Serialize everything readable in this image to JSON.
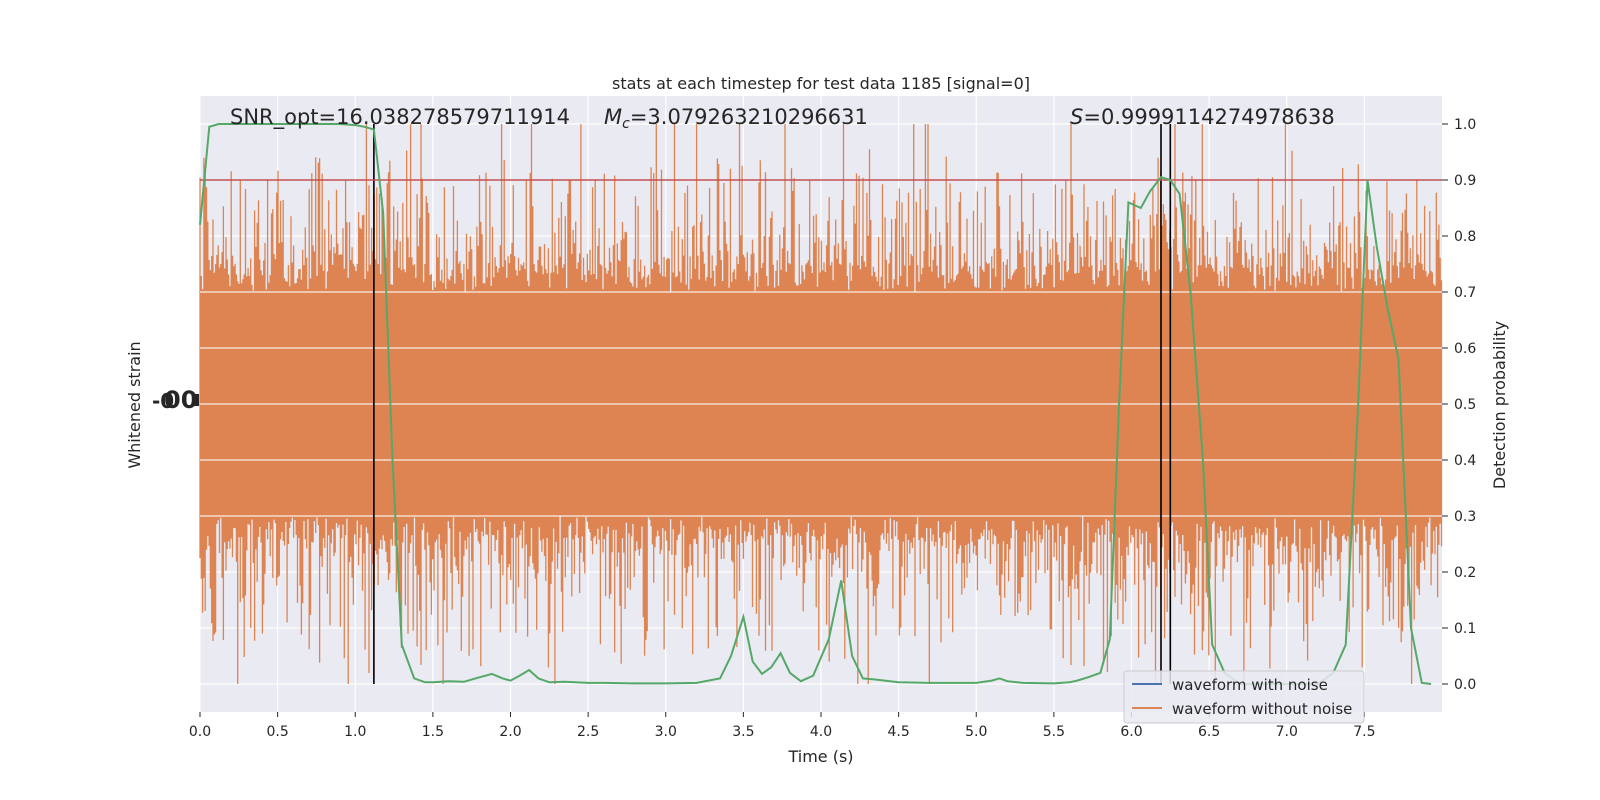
{
  "chart_data": {
    "type": "line",
    "title": "stats at each timestep for test data 1185 [signal=0]",
    "xlabel": "Time (s)",
    "ylabel_left": "Whitened strain",
    "ylabel_right": "Detection probability",
    "xlim": [
      0,
      8
    ],
    "ylim_right": [
      -0.05,
      1.05
    ],
    "grid": true,
    "x_ticks": [
      0.0,
      0.5,
      1.0,
      1.5,
      2.0,
      2.5,
      3.0,
      3.5,
      4.0,
      4.5,
      5.0,
      5.5,
      6.0,
      6.5,
      7.0,
      7.5
    ],
    "x_tick_labels": [
      "0.0",
      "0.5",
      "1.0",
      "1.5",
      "2.0",
      "2.5",
      "3.0",
      "3.5",
      "4.0",
      "4.5",
      "5.0",
      "5.5",
      "6.0",
      "6.5",
      "7.0",
      "7.5"
    ],
    "y_right_ticks": [
      0.0,
      0.1,
      0.2,
      0.3,
      0.4,
      0.5,
      0.6,
      0.7,
      0.8,
      0.9,
      1.0
    ],
    "y_right_tick_labels": [
      "0.0",
      "0.1",
      "0.2",
      "0.3",
      "0.4",
      "0.5",
      "0.6",
      "0.7",
      "0.8",
      "0.9",
      "1.0"
    ],
    "annotations": {
      "snr": "SNR_opt=16.038278579711914",
      "mc_symbol": "M",
      "mc_subscript": "c",
      "mc_value": "=3.079263210296631",
      "s_symbol": "S",
      "s_value": "=0.9999114274978638"
    },
    "legend": {
      "placement": "lower-right",
      "entries": [
        {
          "label": "waveform with noise",
          "color": "#4c72b0"
        },
        {
          "label": "waveform without noise",
          "color": "#dd8452"
        }
      ]
    },
    "threshold": {
      "y": 0.9,
      "color": "#c44e52"
    },
    "vertical_markers": [
      1.12,
      6.19,
      6.25
    ],
    "noise_band": {
      "typical_low": 0.3,
      "typical_high": 0.7,
      "peak_high": 1.0,
      "peak_low": 0.0,
      "color": "#dd8452"
    },
    "series": [
      {
        "name": "Detection probability",
        "color": "#55a868",
        "x": [
          0.0,
          0.06,
          0.12,
          0.2,
          0.3,
          0.4,
          0.5,
          0.6,
          0.7,
          0.8,
          0.9,
          1.0,
          1.06,
          1.12,
          1.18,
          1.24,
          1.3,
          1.38,
          1.45,
          1.5,
          1.6,
          1.7,
          1.8,
          1.88,
          1.95,
          2.0,
          2.06,
          2.12,
          2.18,
          2.25,
          2.35,
          2.5,
          2.6,
          2.8,
          3.0,
          3.2,
          3.35,
          3.42,
          3.5,
          3.56,
          3.62,
          3.68,
          3.74,
          3.8,
          3.87,
          3.95,
          4.05,
          4.13,
          4.2,
          4.27,
          4.35,
          4.5,
          4.7,
          5.0,
          5.1,
          5.15,
          5.2,
          5.3,
          5.5,
          5.6,
          5.65,
          5.72,
          5.8,
          5.86,
          5.92,
          5.98,
          6.06,
          6.12,
          6.19,
          6.25,
          6.31,
          6.38,
          6.46,
          6.52,
          6.6,
          6.7,
          7.0,
          7.2,
          7.3,
          7.38,
          7.46,
          7.52,
          7.58,
          7.65,
          7.72,
          7.8,
          7.87,
          7.93
        ],
        "y": [
          0.82,
          0.995,
          1.0,
          1.0,
          1.0,
          1.0,
          1.0,
          1.0,
          1.0,
          1.0,
          1.0,
          0.998,
          0.995,
          0.99,
          0.84,
          0.4,
          0.07,
          0.01,
          0.003,
          0.003,
          0.005,
          0.004,
          0.012,
          0.018,
          0.01,
          0.006,
          0.015,
          0.025,
          0.01,
          0.003,
          0.004,
          0.002,
          0.002,
          0.001,
          0.001,
          0.002,
          0.01,
          0.05,
          0.12,
          0.04,
          0.018,
          0.03,
          0.055,
          0.02,
          0.005,
          0.015,
          0.08,
          0.185,
          0.05,
          0.01,
          0.008,
          0.003,
          0.002,
          0.002,
          0.006,
          0.01,
          0.005,
          0.002,
          0.001,
          0.003,
          0.006,
          0.012,
          0.02,
          0.08,
          0.5,
          0.86,
          0.85,
          0.88,
          0.905,
          0.9,
          0.875,
          0.7,
          0.4,
          0.07,
          0.02,
          0.0,
          0.0,
          0.0,
          0.02,
          0.07,
          0.5,
          0.9,
          0.78,
          0.67,
          0.58,
          0.1,
          0.002,
          0.0
        ]
      }
    ]
  }
}
